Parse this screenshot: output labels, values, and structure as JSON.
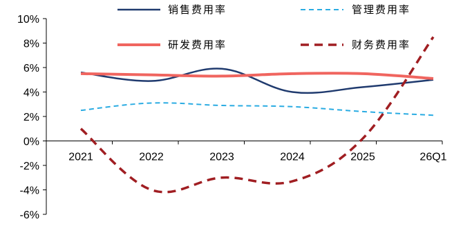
{
  "chart_data": {
    "type": "line",
    "categories": [
      "2021",
      "2022",
      "2023",
      "2024",
      "2025",
      "26Q1"
    ],
    "y_ticks": [
      "10%",
      "8%",
      "6%",
      "4%",
      "2%",
      "0%",
      "-2%",
      "-4%",
      "-6%"
    ],
    "ylim": [
      -6,
      10
    ],
    "y_unit": "%",
    "grid": false,
    "legend_position": "top",
    "series": [
      {
        "name": "销售费用率",
        "values": [
          5.6,
          4.9,
          5.9,
          4.0,
          4.4,
          5.0
        ],
        "color": "#1f3a6e",
        "style": "solid"
      },
      {
        "name": "管理费用率",
        "values": [
          2.5,
          3.1,
          2.9,
          2.8,
          2.4,
          2.1
        ],
        "color": "#29abe2",
        "style": "dashed"
      },
      {
        "name": "研发费用率",
        "values": [
          5.5,
          5.4,
          5.3,
          5.5,
          5.5,
          5.1
        ],
        "color": "#f0655f",
        "style": "solid"
      },
      {
        "name": "财务费用率",
        "values": [
          1.0,
          -4.0,
          -3.0,
          -3.3,
          0.2,
          8.5
        ],
        "color": "#a01e22",
        "style": "dashed"
      }
    ]
  }
}
